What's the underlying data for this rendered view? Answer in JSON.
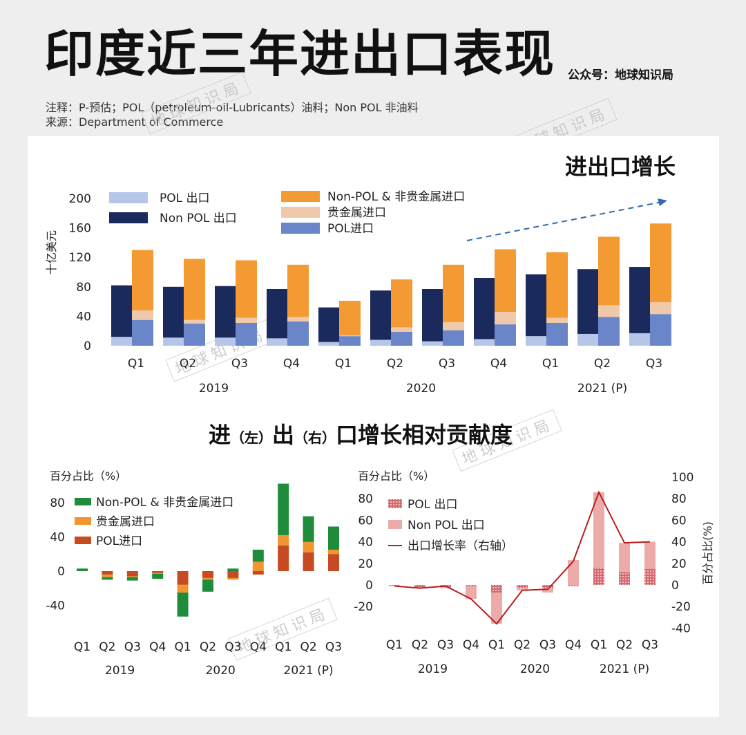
{
  "header": {
    "title": "印度近三年进出口表现",
    "account": "公众号：地球知识局",
    "note": "注释：P-预估；POL（petroleum-oil-Lubricants）油料；Non POL 非油料",
    "source": "来源：Department of Commerce",
    "watermark": "地球知识局"
  },
  "colors": {
    "pol_export": "#b6c6e8",
    "nonpol_export": "#1b2a5c",
    "nonpol_import": "#f39a33",
    "gold_import": "#efc9aa",
    "pol_import": "#6a85c8",
    "trend": "#2e6bb0",
    "green": "#1f8c3b",
    "orange": "#f0962e",
    "rust": "#c64b22",
    "dot_red": "#c44a4f",
    "pink": "#ecaaa8",
    "line_red": "#b81c1c"
  },
  "chart_data": [
    {
      "type": "bar",
      "title": "进出口增长",
      "ylabel": "十亿美元",
      "ylim": [
        0,
        200
      ],
      "yticks": [
        "0",
        "40",
        "80",
        "120",
        "160",
        "200"
      ],
      "categories": [
        "Q1",
        "Q2",
        "Q3",
        "Q4",
        "Q1",
        "Q2",
        "Q3",
        "Q4",
        "Q1",
        "Q2",
        "Q3"
      ],
      "years": [
        {
          "label": "2019",
          "span": [
            0,
            3
          ]
        },
        {
          "label": "2020",
          "span": [
            4,
            7
          ]
        },
        {
          "label": "2021 (P)",
          "span": [
            8,
            10
          ]
        }
      ],
      "export_series": [
        {
          "name": "POL 出口",
          "color_key": "pol_export",
          "values": [
            12,
            11,
            11,
            10,
            5,
            8,
            6,
            9,
            13,
            16,
            17
          ]
        },
        {
          "name": "Non POL 出口",
          "color_key": "nonpol_export",
          "values": [
            70,
            69,
            70,
            67,
            47,
            67,
            71,
            83,
            84,
            88,
            90
          ]
        }
      ],
      "import_series": [
        {
          "name": "POL进口",
          "color_key": "pol_import",
          "values": [
            35,
            30,
            31,
            33,
            13,
            19,
            21,
            29,
            31,
            39,
            43
          ]
        },
        {
          "name": "贵金属进口",
          "color_key": "gold_import",
          "values": [
            13,
            5,
            7,
            6,
            1,
            6,
            11,
            17,
            7,
            16,
            16
          ]
        },
        {
          "name": "Non-POL & 非贵金属进口",
          "color_key": "nonpol_import",
          "values": [
            82,
            83,
            78,
            71,
            47,
            65,
            78,
            85,
            89,
            93,
            107
          ]
        }
      ],
      "legend_order": [
        "POL 出口",
        "Non POL 出口",
        "Non-POL & 非贵金属进口",
        "贵金属进口",
        "POL进口"
      ]
    },
    {
      "type": "bar",
      "title": "进口增长相对贡献",
      "ylabel": "百分占比（%）",
      "ylim": [
        -60,
        100
      ],
      "yticks": [
        "-40",
        "0",
        "40",
        "80"
      ],
      "categories": [
        "Q1",
        "Q2",
        "Q3",
        "Q4",
        "Q1",
        "Q2",
        "Q3",
        "Q4",
        "Q1",
        "Q2",
        "Q3"
      ],
      "years": [
        {
          "label": "2019",
          "span": [
            0,
            3
          ]
        },
        {
          "label": "2020",
          "span": [
            4,
            7
          ]
        },
        {
          "label": "2021 (P)",
          "span": [
            8,
            10
          ]
        }
      ],
      "series": [
        {
          "name": "POL进口",
          "color_key": "rust",
          "values": [
            0,
            -4,
            -6,
            -2,
            -16,
            -8,
            -8,
            -4,
            30,
            22,
            20
          ]
        },
        {
          "name": "贵金属进口",
          "color_key": "orange",
          "values": [
            0,
            -3,
            -1,
            -1,
            -9,
            -2,
            -2,
            11,
            12,
            12,
            5
          ]
        },
        {
          "name": "Non-POL & 非贵金属进口",
          "color_key": "green",
          "values": [
            3,
            -3,
            -4,
            -6,
            -28,
            -14,
            3,
            14,
            60,
            30,
            27
          ]
        }
      ],
      "legend_order": [
        "Non-POL & 非贵金属进口",
        "贵金属进口",
        "POL进口"
      ]
    },
    {
      "type": "bar",
      "title": "出口增长相对贡献",
      "ylabel": "百分占比（%）",
      "ylabel_right": "百分占比(%)",
      "ylim": [
        -20,
        80
      ],
      "yticks": [
        "-20",
        "0",
        "20",
        "40",
        "60",
        "80"
      ],
      "y2lim": [
        -40,
        100
      ],
      "y2ticks": [
        "-40",
        "-20",
        "0",
        "20",
        "40",
        "60",
        "80",
        "100"
      ],
      "categories": [
        "Q1",
        "Q2",
        "Q3",
        "Q4",
        "Q1",
        "Q2",
        "Q3",
        "Q4",
        "Q1",
        "Q2",
        "Q3"
      ],
      "years": [
        {
          "label": "2019",
          "span": [
            0,
            3
          ]
        },
        {
          "label": "2020",
          "span": [
            4,
            7
          ]
        },
        {
          "label": "2021 (P)",
          "span": [
            8,
            10
          ]
        }
      ],
      "series": [
        {
          "name": "POL 出口",
          "color_key": "dot_red",
          "values": [
            -1,
            -2,
            -2,
            -1,
            -7,
            -3,
            -3,
            -1,
            16,
            12,
            15
          ]
        },
        {
          "name": "Non POL 出口",
          "color_key": "pink",
          "values": [
            0,
            -1,
            -1,
            -12,
            -29,
            -2,
            -4,
            23,
            70,
            27,
            25
          ]
        }
      ],
      "line": {
        "name": "出口增长率（右轴）",
        "color_key": "line_red",
        "values": [
          -1,
          -3,
          -1,
          -13,
          -36,
          -5,
          -4,
          22,
          86,
          39,
          40
        ]
      },
      "legend_order": [
        "POL 出口",
        "Non POL 出口",
        "出口增长率（右轴）"
      ]
    }
  ],
  "section2_title": {
    "a": "进",
    "b": "（左）",
    "c": "出",
    "d": "（右）",
    "e": "口增长相对贡献度"
  }
}
